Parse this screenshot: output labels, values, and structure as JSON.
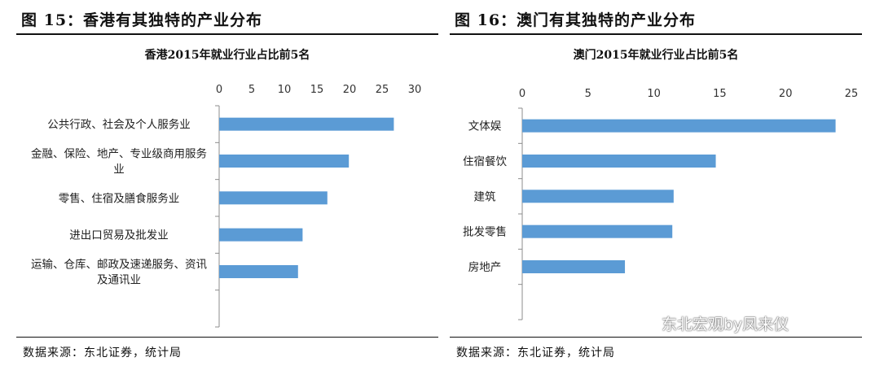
{
  "panels": [
    {
      "figure_title": "图 15：香港有其独特的产业分布",
      "source": "数据来源：东北证券，统计局",
      "chart_data": {
        "type": "bar",
        "orientation": "horizontal",
        "title": "香港2015年就业行业占比前5名",
        "xlim": [
          0,
          30
        ],
        "xticks": [
          0,
          5,
          10,
          15,
          20,
          25,
          30
        ],
        "categories": [
          [
            "公共行政、社会及个人服务业"
          ],
          [
            "金融、保险、地产、专业级商用服务",
            "业"
          ],
          [
            "零售、住宿及膳食服务业"
          ],
          [
            "进出口贸易及批发业"
          ],
          [
            "运输、仓库、邮政及速递服务、资讯",
            "及通讯业"
          ]
        ],
        "values": [
          26.8,
          19.9,
          16.6,
          12.8,
          12.1
        ],
        "color": "#5b9bd5"
      }
    },
    {
      "figure_title": "图 16：澳门有其独特的产业分布",
      "source": "数据来源：东北证券，统计局",
      "chart_data": {
        "type": "bar",
        "orientation": "horizontal",
        "title": "澳门2015年就业行业占比前5名",
        "xlim": [
          0,
          25
        ],
        "xticks": [
          0,
          5,
          10,
          15,
          20,
          25
        ],
        "categories": [
          [
            "文体娱"
          ],
          [
            "住宿餐饮"
          ],
          [
            "建筑"
          ],
          [
            "批发零售"
          ],
          [
            "房地产"
          ]
        ],
        "values": [
          23.8,
          14.7,
          11.5,
          11.4,
          7.8
        ],
        "color": "#5b9bd5"
      }
    }
  ],
  "watermark": {
    "text": "东北宏观by凤来仪",
    "icon": "wechat-icon"
  }
}
